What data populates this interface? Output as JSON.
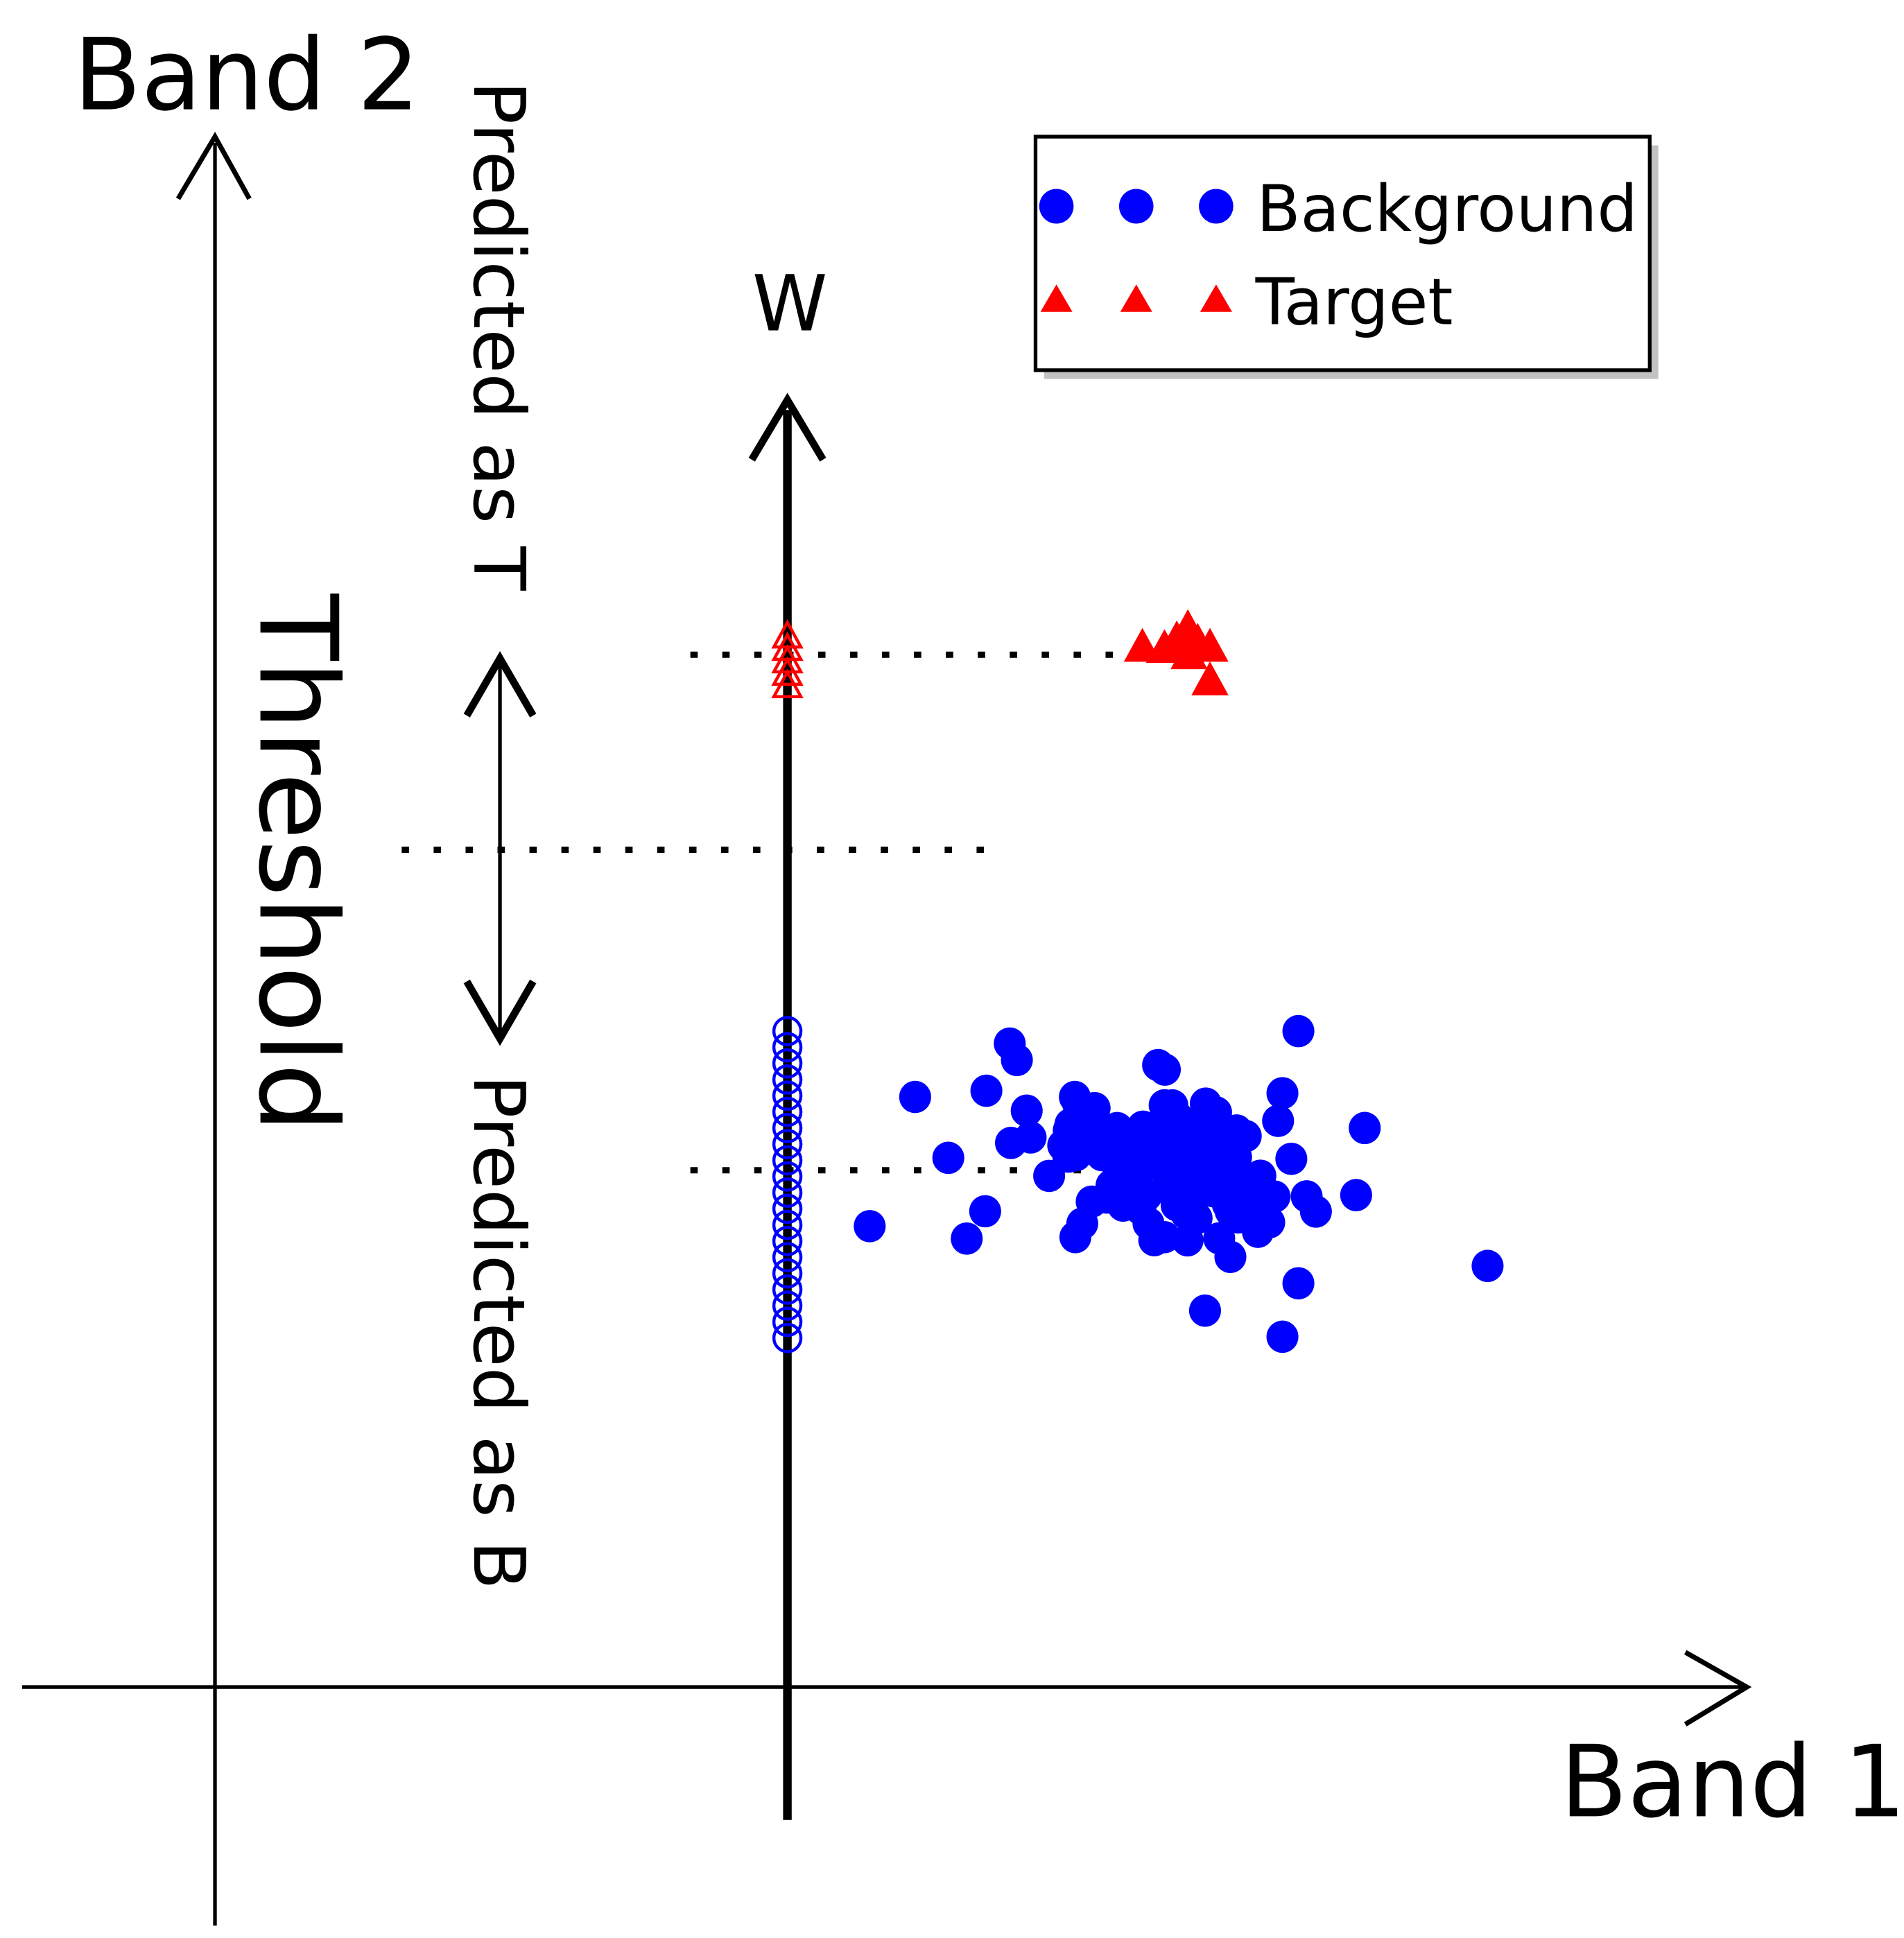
{
  "axes": {
    "y_label": "Band 2",
    "x_label": "Band 1",
    "projection_label": "W"
  },
  "annotations": {
    "upper": "Predicted as T",
    "lower": "Predicted as B",
    "threshold": "Threshold"
  },
  "legend": {
    "items": [
      {
        "label": "Background"
      },
      {
        "label": "Target"
      }
    ]
  }
}
